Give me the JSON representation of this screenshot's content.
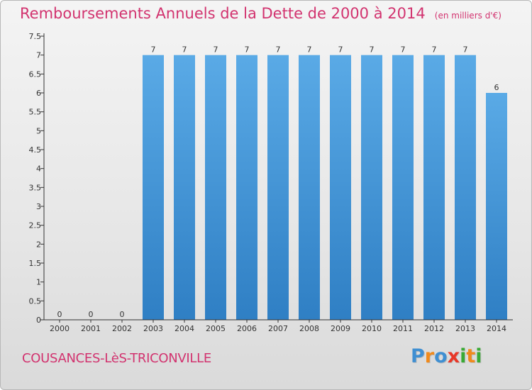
{
  "header": {
    "title": "Remboursements Annuels de la Dette de 2000 à 2014",
    "unit": "(en milliers d'€)"
  },
  "footer": {
    "commune": "COUSANCES-LèS-TRICONVILLE",
    "brand_letters": [
      {
        "ch": "P",
        "color": "#3f8fd2"
      },
      {
        "ch": "r",
        "color": "#f08a1c"
      },
      {
        "ch": "o",
        "color": "#3f8fd2"
      },
      {
        "ch": "x",
        "color": "#e83828"
      },
      {
        "ch": "i",
        "color": "#3aaa35"
      },
      {
        "ch": "t",
        "color": "#f08a1c"
      },
      {
        "ch": "i",
        "color": "#3aaa35"
      }
    ]
  },
  "colors": {
    "bar_top": "#5aaae6",
    "bar_bottom": "#2f7fc4",
    "accent": "#d2336f",
    "axis": "#333333"
  },
  "chart_data": {
    "type": "bar",
    "categories": [
      "2000",
      "2001",
      "2002",
      "2003",
      "2004",
      "2005",
      "2006",
      "2007",
      "2008",
      "2009",
      "2010",
      "2011",
      "2012",
      "2013",
      "2014"
    ],
    "values": [
      0,
      0,
      0,
      7,
      7,
      7,
      7,
      7,
      7,
      7,
      7,
      7,
      7,
      7,
      6
    ],
    "ylim": [
      0,
      7.5
    ],
    "y_ticks": [
      0,
      0.5,
      1,
      1.5,
      2,
      2.5,
      3,
      3.5,
      4,
      4.5,
      5,
      5.5,
      6,
      6.5,
      7,
      7.5
    ],
    "y_tick_labels": [
      "0",
      "0.5",
      "1",
      "1.5",
      "2",
      "2.5",
      "3",
      "3.5",
      "4",
      "4.5",
      "5",
      "5.5",
      "6",
      "6.5",
      "7",
      "7.5"
    ],
    "grid": false,
    "xlabel": "",
    "ylabel": ""
  }
}
